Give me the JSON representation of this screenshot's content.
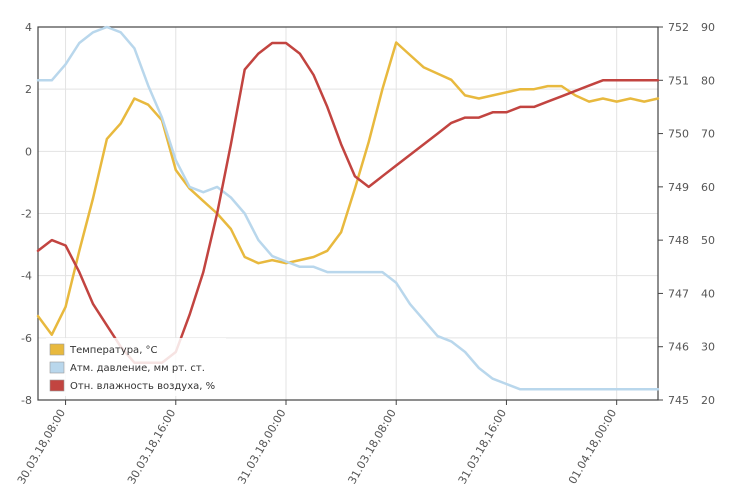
{
  "chart_data": {
    "type": "line",
    "title": "",
    "x": [
      "30.03.18 06:00",
      "30.03.18 07:00",
      "30.03.18 08:00",
      "30.03.18 09:00",
      "30.03.18 10:00",
      "30.03.18 11:00",
      "30.03.18 12:00",
      "30.03.18 13:00",
      "30.03.18 14:00",
      "30.03.18 15:00",
      "30.03.18 16:00",
      "30.03.18 17:00",
      "30.03.18 18:00",
      "30.03.18 19:00",
      "30.03.18 20:00",
      "30.03.18 21:00",
      "30.03.18 22:00",
      "30.03.18 23:00",
      "31.03.18 00:00",
      "31.03.18 01:00",
      "31.03.18 02:00",
      "31.03.18 03:00",
      "31.03.18 04:00",
      "31.03.18 05:00",
      "31.03.18 06:00",
      "31.03.18 07:00",
      "31.03.18 08:00",
      "31.03.18 09:00",
      "31.03.18 10:00",
      "31.03.18 11:00",
      "31.03.18 12:00",
      "31.03.18 13:00",
      "31.03.18 14:00",
      "31.03.18 15:00",
      "31.03.18 16:00",
      "31.03.18 17:00",
      "31.03.18 18:00",
      "31.03.18 19:00",
      "31.03.18 20:00",
      "31.03.18 21:00",
      "31.03.18 22:00",
      "31.03.18 23:00",
      "01.04.18 00:00",
      "01.04.18 01:00",
      "01.04.18 02:00",
      "01.04.18 03:00"
    ],
    "x_tick_labels": [
      "30.03.18,08:00",
      "30.03.18,16:00",
      "31.03.18,00:00",
      "31.03.18,08:00",
      "31.03.18,16:00",
      "01.04.18,00:00"
    ],
    "x_tick_index": [
      2,
      10,
      18,
      26,
      34,
      42
    ],
    "series": [
      {
        "name": "Температура, °C",
        "axis": "left",
        "color": "#e8b93e",
        "values": [
          -5.3,
          -5.9,
          -5.0,
          -3.2,
          -1.5,
          0.4,
          0.9,
          1.7,
          1.5,
          1.0,
          -0.6,
          -1.2,
          -1.6,
          -2.0,
          -2.5,
          -3.4,
          -3.6,
          -3.5,
          -3.6,
          -3.5,
          -3.4,
          -3.2,
          -2.6,
          -1.2,
          0.3,
          2.0,
          3.5,
          3.1,
          2.7,
          2.5,
          2.3,
          1.8,
          1.7,
          1.8,
          1.9,
          2.0,
          2.0,
          2.1,
          2.1,
          1.8,
          1.6,
          1.7,
          1.6,
          1.7,
          1.6,
          1.7
        ]
      },
      {
        "name": "Атм. давление, мм рт. ст.",
        "axis": "right",
        "color": "#b9d7ec",
        "values": [
          751.0,
          751.0,
          751.3,
          751.7,
          751.9,
          752.0,
          751.9,
          751.6,
          750.9,
          750.3,
          749.5,
          749.0,
          748.9,
          749.0,
          748.8,
          748.5,
          748.0,
          747.7,
          747.6,
          747.5,
          747.5,
          747.4,
          747.4,
          747.4,
          747.4,
          747.4,
          747.2,
          746.8,
          746.5,
          746.2,
          746.1,
          745.9,
          745.6,
          745.4,
          745.3,
          745.2,
          745.2,
          745.2,
          745.2,
          745.2,
          745.2,
          745.2,
          745.2,
          745.2,
          745.2,
          745.2
        ]
      },
      {
        "name": "Отн. влажность воздуха, %",
        "axis": "right",
        "color": "#c24440",
        "values": [
          48,
          50,
          49,
          44,
          38,
          34,
          30,
          27,
          27,
          27,
          29,
          36,
          44,
          55,
          68,
          82,
          85,
          87,
          87,
          85,
          81,
          75,
          68,
          62,
          60,
          62,
          64,
          66,
          68,
          70,
          72,
          73,
          73,
          74,
          74,
          75,
          75,
          76,
          77,
          78,
          79,
          80,
          80,
          80,
          80,
          80
        ]
      }
    ],
    "y_left": {
      "min": -8,
      "max": 4,
      "ticks": [
        -8,
        -6,
        -4,
        -2,
        0,
        2,
        4
      ]
    },
    "y_right_pressure": {
      "min": 745,
      "max": 752,
      "ticks": [
        745,
        746,
        747,
        748,
        749,
        750,
        751,
        752
      ]
    },
    "y_right_humidity": {
      "min": 20,
      "max": 90,
      "ticks": [
        20,
        30,
        40,
        50,
        60,
        70,
        80,
        90
      ]
    },
    "grid": true,
    "legend_position": "bottom-left"
  }
}
